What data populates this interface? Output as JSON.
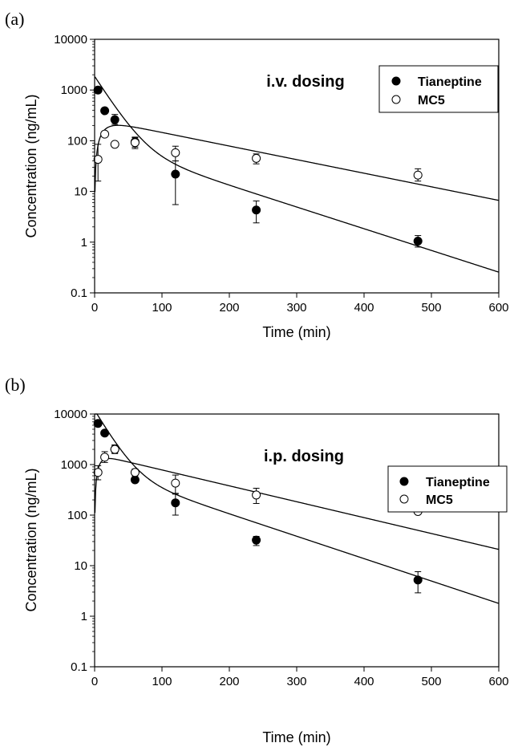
{
  "chart_data": [
    {
      "type": "scatter",
      "panel_label": "(a)",
      "title": "i.v. dosing",
      "xlabel": "Time (min)",
      "ylabel": "Concentration (ng/mL)",
      "xlim": [
        0,
        600
      ],
      "ylim": [
        0.1,
        10000
      ],
      "yscale": "log",
      "x_ticks": [
        "0",
        "100",
        "200",
        "300",
        "400",
        "500",
        "600"
      ],
      "y_ticks": [
        "0.1",
        "1",
        "10",
        "100",
        "1000",
        "10000"
      ],
      "grid": false,
      "legend_position": "top-right",
      "series": [
        {
          "name": "Tianeptine",
          "marker": "filled-circle",
          "x": [
            5,
            15,
            30,
            60,
            120,
            240,
            480
          ],
          "y": [
            1000,
            390,
            260,
            95,
            22,
            4.3,
            1.05
          ],
          "err_low": [
            1000,
            390,
            210,
            75,
            5.5,
            2.4,
            0.8
          ],
          "err_high": [
            1000,
            390,
            330,
            115,
            40,
            6.5,
            1.35
          ],
          "fit": {
            "type": "biexponential",
            "A": 1770,
            "alpha": 0.0485,
            "B": 95,
            "beta": 0.00986
          }
        },
        {
          "name": "MC5",
          "marker": "open-circle",
          "x": [
            5,
            15,
            30,
            60,
            120,
            240,
            480
          ],
          "y": [
            43,
            135,
            85,
            92,
            58,
            45,
            21
          ],
          "err_low": [
            16,
            135,
            85,
            70,
            40,
            35,
            16
          ],
          "err_high": [
            85,
            135,
            85,
            118,
            78,
            55,
            28
          ],
          "fit": {
            "type": "absorption",
            "C": 270,
            "beta": 0.00617,
            "ka": 0.08
          }
        }
      ]
    },
    {
      "type": "scatter",
      "panel_label": "(b)",
      "title": "i.p. dosing",
      "xlabel": "Time (min)",
      "ylabel": "Concentration (ng/mL)",
      "xlim": [
        0,
        600
      ],
      "ylim": [
        0.1,
        10000
      ],
      "yscale": "log",
      "x_ticks": [
        "0",
        "100",
        "200",
        "300",
        "400",
        "500",
        "600"
      ],
      "y_ticks": [
        "0.1",
        "1",
        "10",
        "100",
        "1000",
        "10000"
      ],
      "grid": false,
      "legend_position": "top-right",
      "series": [
        {
          "name": "Tianeptine",
          "marker": "filled-circle",
          "x": [
            5,
            15,
            30,
            60,
            120,
            240,
            480
          ],
          "y": [
            6500,
            4200,
            2000,
            500,
            175,
            32,
            5.2
          ],
          "err_low": [
            6500,
            4200,
            1650,
            500,
            100,
            25,
            2.9
          ],
          "err_high": [
            6500,
            4200,
            2450,
            500,
            270,
            38,
            7.6
          ],
          "fit": {
            "type": "biexponential",
            "A": 11100,
            "alpha": 0.0528,
            "B": 815,
            "beta": 0.0102
          }
        },
        {
          "name": "MC5",
          "marker": "open-circle",
          "x": [
            5,
            15,
            30,
            60,
            120,
            240,
            480
          ],
          "y": [
            700,
            1400,
            2000,
            700,
            430,
            250,
            118
          ],
          "err_low": [
            500,
            1100,
            1700,
            600,
            260,
            170,
            118
          ],
          "err_high": [
            950,
            1800,
            2350,
            820,
            620,
            340,
            118
          ],
          "fit": {
            "type": "absorption",
            "C": 1615,
            "beta": 0.00724,
            "ka": 0.15
          }
        }
      ]
    }
  ]
}
